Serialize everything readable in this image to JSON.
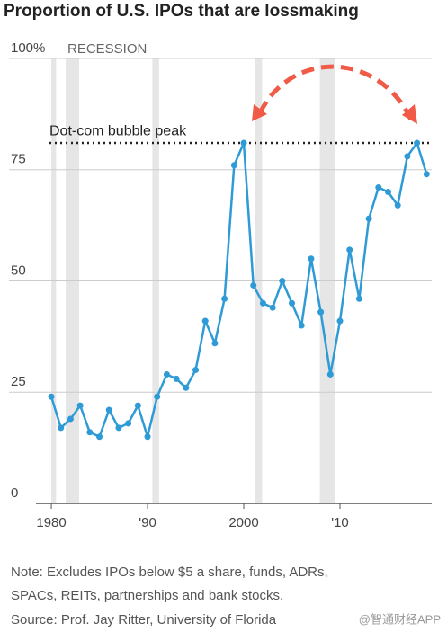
{
  "chart_data": {
    "type": "line",
    "title": "Proportion of U.S. IPOs that are lossmaking",
    "x": [
      1980,
      1981,
      1982,
      1983,
      1984,
      1985,
      1986,
      1987,
      1988,
      1989,
      1990,
      1991,
      1992,
      1993,
      1994,
      1995,
      1996,
      1997,
      1998,
      1999,
      2000,
      2001,
      2002,
      2003,
      2004,
      2005,
      2006,
      2007,
      2008,
      2009,
      2010,
      2011,
      2012,
      2013,
      2014,
      2015,
      2016,
      2017,
      2018,
      2019
    ],
    "series": [
      {
        "name": "Lossmaking IPOs",
        "color": "#2e9ad6",
        "values": [
          24,
          17,
          19,
          22,
          16,
          15,
          21,
          17,
          18,
          22,
          15,
          24,
          29,
          28,
          26,
          30,
          41,
          36,
          46,
          76,
          81,
          49,
          45,
          44,
          50,
          45,
          40,
          55,
          43,
          29,
          41,
          57,
          46,
          64,
          71,
          70,
          67,
          78,
          81,
          74
        ]
      }
    ],
    "xlim": [
      1978.5,
      2020
    ],
    "xticks": [
      1980,
      {
        "value": 1990,
        "label": "'90"
      },
      2000,
      {
        "value": 2010,
        "label": "'10"
      }
    ],
    "ylim": [
      0,
      100
    ],
    "yticks": [
      0,
      25,
      50,
      75,
      {
        "value": 100,
        "label": "100%"
      }
    ],
    "grid": true,
    "recession_label": "RECESSION",
    "recessions": [
      [
        1980,
        1980.5
      ],
      [
        1981.5,
        1982.9
      ],
      [
        1990.5,
        1991.2
      ],
      [
        2001.2,
        2001.9
      ],
      [
        2007.9,
        2009.5
      ]
    ],
    "reference_line": {
      "value": 81,
      "label": "Dot-com bubble peak"
    },
    "note": "Note: Excludes IPOs below $5 a share, funds, ADRs,",
    "note2": "SPACs, REITs, partnerships and bank stocks.",
    "source": "Source: Prof. Jay Ritter, University of Florida",
    "watermark": "@智通财经APP"
  }
}
